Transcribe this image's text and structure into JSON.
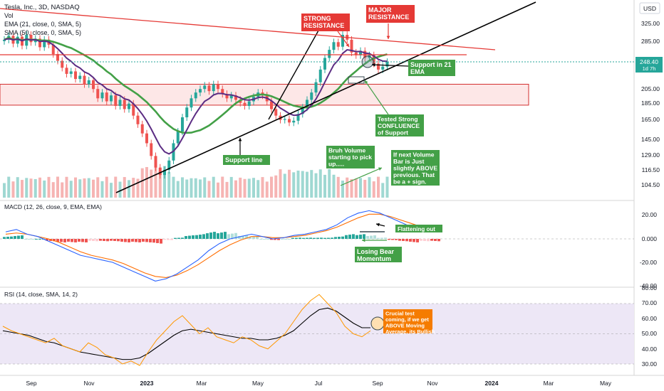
{
  "header": {
    "line1": "Tesla, Inc., 3D, NASDAQ",
    "line2": "Vol",
    "line3": "EMA (21, close, 0, SMA, 5)",
    "line4": "SMA (50, close, 0, SMA, 5)",
    "currency": "USD"
  },
  "price_badge": {
    "value": "248.40",
    "countdown": "1d 7h"
  },
  "panels": {
    "macd_title": "MACD (12, 26, close, 9, EMA, EMA)",
    "rsi_title": "RSI (14, close, SMA, 14, 2)"
  },
  "annotations": {
    "strong_resistance": "STRONG\nRESISTANCE",
    "major_resistance": "MAJOR\nRESISTANCE",
    "support_21ema": "Support in 21\nEMA",
    "support_line": "Support line",
    "tested_confluence": "Tested Strong\nCONFLUENCE\nof Support",
    "bruh_volume": "Bruh Volume\nstarting to pick\nup.....",
    "next_volume": "If next Volume\nBar is Just\nslightly ABOVE\nprevious. That\nbe a + sign.",
    "flattening": "Flattening out",
    "losing_bear": "Losing Bear\nMomentum",
    "crucial_test": "Crucial test\ncoming, if we get\nABOVE Moving\nAverage, its Bullish"
  },
  "colors": {
    "up": "#26a69a",
    "down": "#ef5350",
    "ema": "#5b2c83",
    "sma": "#43a047",
    "trend": "#000000",
    "resistance": "#e53935",
    "callout_red": "#e53935",
    "callout_green": "#43a047",
    "callout_orange": "#f57c00",
    "macd_line": "#2962ff",
    "signal_line": "#ff6d00",
    "rsi_line": "#ff9800",
    "rsi_ma": "#000000",
    "rsi_band": "#ede7f6"
  },
  "chart_data": {
    "type": "candlestick",
    "x_ticks": [
      "Sep",
      "Nov",
      "2023",
      "Mar",
      "May",
      "Jul",
      "Sep",
      "Nov",
      "2024",
      "Mar",
      "May"
    ],
    "price_axis": {
      "ticks": [
        "325.00",
        "285.00",
        "248.40",
        "205.00",
        "185.00",
        "165.00",
        "145.00",
        "129.00",
        "116.50",
        "104.50"
      ],
      "scale": "log"
    },
    "price_path": [
      290,
      298,
      282,
      296,
      278,
      300,
      285,
      292,
      275,
      290,
      280,
      262,
      250,
      238,
      228,
      232,
      220,
      225,
      212,
      218,
      205,
      192,
      200,
      188,
      196,
      182,
      190,
      178,
      185,
      170,
      160,
      150,
      140,
      128,
      118,
      112,
      116,
      124,
      140,
      152,
      168,
      180,
      192,
      200,
      205,
      210,
      202,
      212,
      205,
      198,
      192,
      196,
      190,
      186,
      182,
      188,
      194,
      200,
      196,
      188,
      178,
      170,
      165,
      166,
      162,
      164,
      172,
      180,
      190,
      200,
      215,
      235,
      255,
      270,
      285,
      276,
      300,
      290,
      265,
      260,
      268,
      255,
      260,
      245,
      235,
      240,
      248
    ],
    "support_zone": [
      183,
      212
    ],
    "macd": {
      "axis": [
        "20.00",
        "0.000",
        "-20.00",
        "-40.00"
      ],
      "macd_line": [
        6,
        8,
        4,
        2,
        -2,
        -6,
        -10,
        -14,
        -16,
        -18,
        -20,
        -24,
        -28,
        -32,
        -36,
        -34,
        -30,
        -24,
        -18,
        -10,
        -4,
        0,
        2,
        4,
        2,
        0,
        1,
        3,
        4,
        6,
        8,
        12,
        18,
        22,
        24,
        22,
        18,
        14,
        10,
        8,
        6
      ],
      "signal_line": [
        4,
        5,
        4,
        2,
        0,
        -3,
        -7,
        -11,
        -14,
        -16,
        -18,
        -21,
        -25,
        -29,
        -32,
        -33,
        -31,
        -27,
        -22,
        -16,
        -10,
        -5,
        -1,
        2,
        2,
        1,
        1,
        2,
        3,
        5,
        7,
        10,
        14,
        18,
        21,
        21,
        19,
        16,
        13,
        10,
        8
      ],
      "histogram": [
        2,
        3,
        0,
        0,
        -2,
        -3,
        -3,
        -3,
        -2,
        -2,
        -2,
        -3,
        -3,
        -3,
        -4,
        -1,
        1,
        3,
        4,
        6,
        6,
        5,
        3,
        2,
        0,
        -1,
        0,
        1,
        1,
        1,
        1,
        2,
        4,
        4,
        3,
        1,
        -1,
        -2,
        -3,
        -2,
        -2
      ]
    },
    "rsi": {
      "axis": [
        "80.00",
        "70.00",
        "60.00",
        "50.00",
        "40.00",
        "30.00"
      ],
      "band": [
        30,
        70
      ],
      "rsi_line": [
        55,
        52,
        50,
        48,
        46,
        44,
        47,
        42,
        40,
        38,
        44,
        41,
        36,
        34,
        30,
        32,
        29,
        38,
        46,
        52,
        58,
        62,
        56,
        50,
        54,
        48,
        46,
        44,
        48,
        46,
        42,
        40,
        45,
        50,
        58,
        66,
        72,
        76,
        70,
        64,
        55,
        50,
        48,
        52
      ],
      "rsi_ma": [
        52,
        51,
        50,
        49,
        47,
        45,
        44,
        42,
        40,
        38,
        37,
        36,
        35,
        34,
        33,
        33,
        34,
        37,
        41,
        45,
        49,
        52,
        53,
        52,
        51,
        50,
        49,
        48,
        47,
        47,
        46,
        46,
        47,
        49,
        52,
        57,
        62,
        66,
        67,
        65,
        61,
        57,
        54,
        54
      ]
    }
  }
}
